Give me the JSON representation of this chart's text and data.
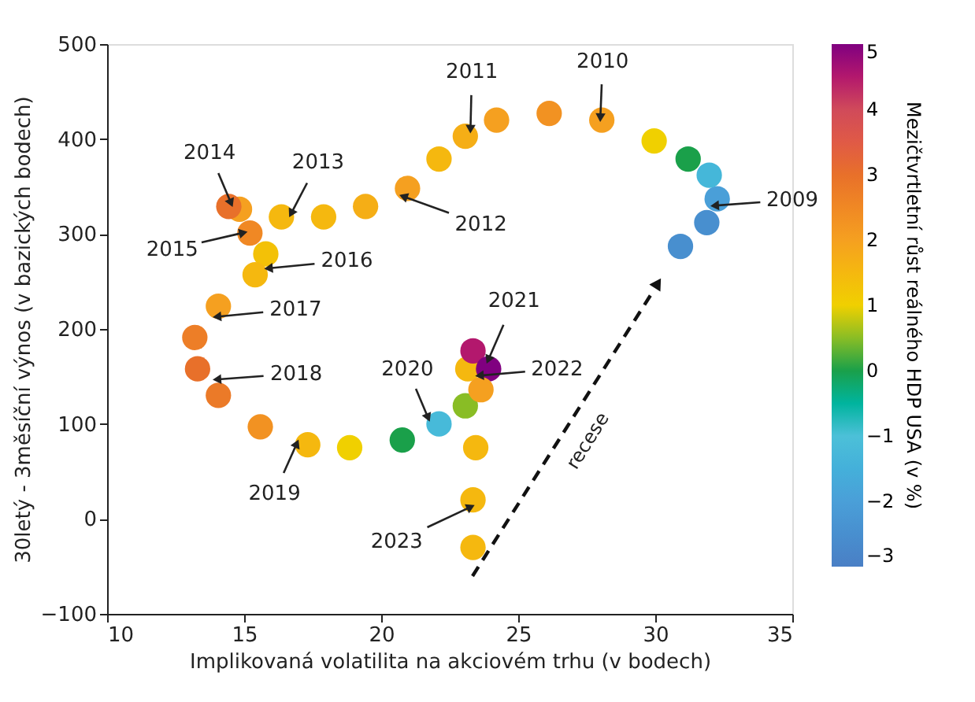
{
  "chart_data": {
    "type": "scatter",
    "xlabel": "Implikovaná volatilita na akciovém trhu (v bodech)",
    "ylabel": "30letý - 3měsíční výnos (v bazických bodech)",
    "clabel": "Mezičtvrtletní růst reálného HDP USA (v %)",
    "xlim": [
      10,
      35
    ],
    "xticks": [
      10,
      15,
      20,
      25,
      30,
      35
    ],
    "ylim": [
      -100,
      500
    ],
    "yticks": [
      -100,
      0,
      100,
      200,
      300,
      400,
      500
    ],
    "clim": [
      -3,
      5
    ],
    "cticks": [
      -3,
      -2,
      -1,
      0,
      1,
      2,
      3,
      4,
      5
    ],
    "grid": false,
    "marker": "circle",
    "x": [
      30.92,
      31.88,
      32.26,
      31.97,
      31.2,
      29.96,
      28.05,
      26.13,
      24.21,
      23.07,
      22.11,
      20.96,
      19.43,
      17.9,
      16.36,
      14.83,
      14.44,
      15.21,
      15.79,
      15.4,
      14.06,
      13.2,
      13.3,
      14.06,
      15.59,
      17.32,
      18.85,
      20.77,
      22.11,
      23.07,
      23.16,
      23.35,
      23.92,
      23.64,
      23.45,
      23.35,
      23.35
    ],
    "values": [
      287,
      312,
      337,
      362,
      379,
      398,
      420,
      427,
      420,
      403,
      379,
      348,
      329,
      318,
      318,
      326,
      329,
      301,
      279,
      257,
      224,
      191,
      158,
      130,
      97,
      78,
      75,
      83,
      100,
      119,
      158,
      177,
      158,
      136,
      75,
      20,
      -30
    ],
    "cvalues": [
      -2.5,
      -2.5,
      -2,
      -1.3,
      0,
      1,
      2,
      2.3,
      2,
      1.7,
      1.5,
      2,
      1.7,
      1.5,
      1.5,
      2,
      3,
      2.5,
      1.3,
      1.5,
      2,
      2.7,
      3,
      2.8,
      2.3,
      1.5,
      1,
      0,
      -1.2,
      0.5,
      1.5,
      4.5,
      5,
      2,
      1.5,
      1.5,
      1.5
    ],
    "annotations": [
      {
        "text": "2014",
        "x": 14.5,
        "y": 334
      },
      {
        "text": "2013",
        "x": 16.74,
        "y": 323
      },
      {
        "text": "2012",
        "x": 20.86,
        "y": 339
      },
      {
        "text": "2011",
        "x": 23.26,
        "y": 412
      },
      {
        "text": "2010",
        "x": 28.0,
        "y": 424
      },
      {
        "text": "2009",
        "x": 32.22,
        "y": 330
      },
      {
        "text": "2015",
        "x": 14.92,
        "y": 301
      },
      {
        "text": "2016",
        "x": 15.94,
        "y": 264
      },
      {
        "text": "2017",
        "x": 14.06,
        "y": 213
      },
      {
        "text": "2018",
        "x": 14.06,
        "y": 147
      },
      {
        "text": "2019",
        "x": 16.9,
        "y": 78
      },
      {
        "text": "2020",
        "x": 21.69,
        "y": 108
      },
      {
        "text": "2021",
        "x": 23.93,
        "y": 169
      },
      {
        "text": "2022",
        "x": 23.64,
        "y": 151
      },
      {
        "text": "2023",
        "x": 23.22,
        "y": 12
      },
      "recese"
    ]
  }
}
